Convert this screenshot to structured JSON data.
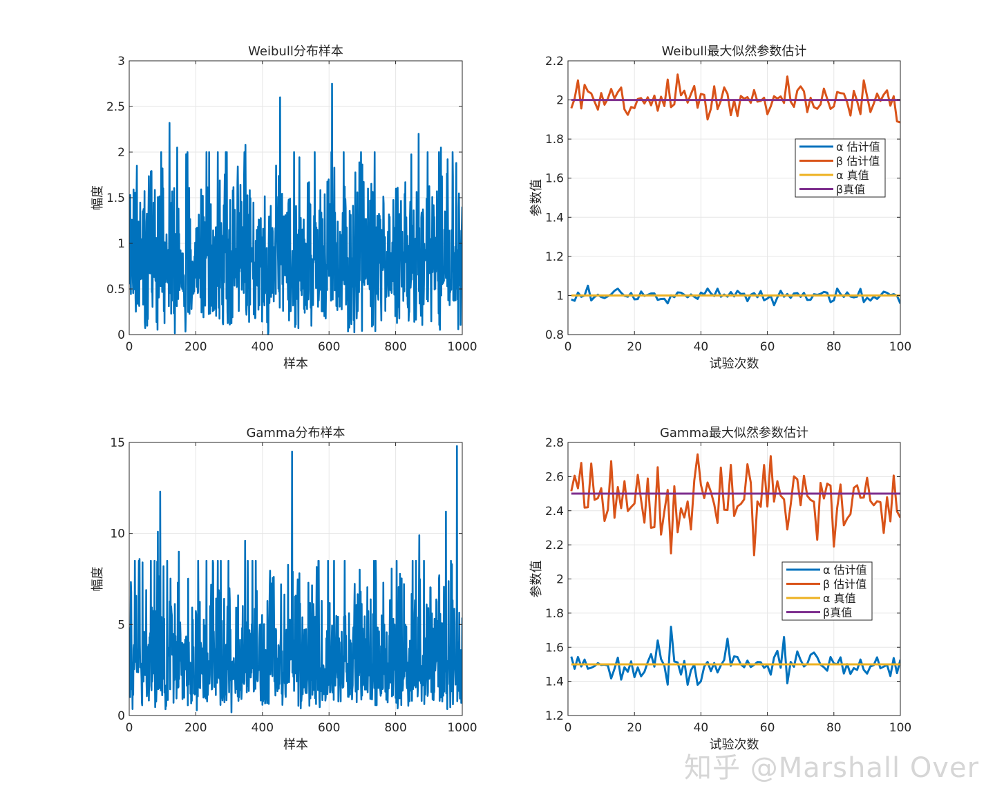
{
  "watermark": "知乎 @Marshall Over",
  "colors": {
    "blue": "#0072BD",
    "orange": "#D95319",
    "yellow": "#EDB120",
    "purple": "#7E2F8E",
    "grid": "#e6e6e6",
    "axis": "#262626"
  },
  "chart_data": [
    {
      "id": "weibull-samples",
      "type": "line",
      "title": "Weibull分布样本",
      "xlabel": "样本",
      "ylabel": "幅度",
      "xlim": [
        0,
        1000
      ],
      "ylim": [
        0,
        3
      ],
      "xticks": [
        0,
        200,
        400,
        600,
        800,
        1000
      ],
      "yticks": [
        0,
        0.5,
        1,
        1.5,
        2,
        2.5,
        3
      ],
      "ytick_labels": [
        "0",
        "0.5",
        "1",
        "1.5",
        "2",
        "2.5",
        "3"
      ],
      "series": [
        {
          "name": "Weibull samples",
          "color": "#0072BD",
          "n": 1000,
          "distribution": "weibull",
          "peaks": [
            [
              120,
              2.32
            ],
            [
              452,
              2.6
            ],
            [
              608,
              2.75
            ],
            [
              868,
              2.2
            ],
            [
              143,
              2.05
            ],
            [
              348,
              2.08
            ],
            [
              2,
              1.53
            ],
            [
              22,
              1.85
            ],
            [
              935,
              2.05
            ]
          ]
        }
      ]
    },
    {
      "id": "weibull-mle",
      "type": "line",
      "title": "Weibull最大似然参数估计",
      "xlabel": "试验次数",
      "ylabel": "参数值",
      "xlim": [
        0,
        100
      ],
      "ylim": [
        0.8,
        2.2
      ],
      "xticks": [
        0,
        20,
        40,
        60,
        80,
        100
      ],
      "yticks": [
        0.8,
        1,
        1.2,
        1.4,
        1.6,
        1.8,
        2,
        2.2
      ],
      "ytick_labels": [
        "0.8",
        "1",
        "1.2",
        "1.4",
        "1.6",
        "1.8",
        "2",
        "2.2"
      ],
      "legend": {
        "position": "right-middle",
        "entries": [
          "α 估计值",
          "β 估计值",
          "α 真值",
          "β真值"
        ]
      },
      "series": [
        {
          "name": "α 估计值",
          "color": "#0072BD",
          "x_start": 1,
          "x_end": 100,
          "mean": 1.0,
          "spread": 0.018,
          "spikes": [
            [
              6,
              1.05
            ],
            [
              45,
              1.035
            ],
            [
              3,
              1.015
            ]
          ]
        },
        {
          "name": "β 估计值",
          "color": "#D95319",
          "x_start": 1,
          "x_end": 100,
          "mean": 2.0,
          "spread": 0.045,
          "spikes": [
            [
              3,
              2.1
            ],
            [
              33,
              2.13
            ],
            [
              66,
              2.12
            ],
            [
              89,
              2.1
            ],
            [
              100,
              1.885
            ],
            [
              42,
              1.9
            ],
            [
              44,
              2.07
            ]
          ]
        },
        {
          "name": "α 真值",
          "color": "#EDB120",
          "x": [
            1,
            100
          ],
          "values": [
            1,
            1
          ]
        },
        {
          "name": "β真值",
          "color": "#7E2F8E",
          "x": [
            1,
            100
          ],
          "values": [
            2,
            2
          ]
        }
      ]
    },
    {
      "id": "gamma-samples",
      "type": "line",
      "title": "Gamma分布样本",
      "xlabel": "样本",
      "ylabel": "幅度",
      "xlim": [
        0,
        1000
      ],
      "ylim": [
        0,
        15
      ],
      "xticks": [
        0,
        200,
        400,
        600,
        800,
        1000
      ],
      "yticks": [
        0,
        5,
        10,
        15
      ],
      "ytick_labels": [
        "0",
        "5",
        "10",
        "15"
      ],
      "series": [
        {
          "name": "Gamma samples",
          "color": "#0072BD",
          "n": 1000,
          "distribution": "gamma",
          "peaks": [
            [
              85,
              10.1
            ],
            [
              92,
              12.3
            ],
            [
              488,
              14.5
            ],
            [
              983,
              14.8
            ],
            [
              347,
              9.6
            ],
            [
              148,
              9.0
            ],
            [
              30,
              8.6
            ],
            [
              5,
              6.8
            ],
            [
              950,
              11.2
            ],
            [
              870,
              9.9
            ],
            [
              762,
              7.3
            ],
            [
              490,
              7.9
            ],
            [
              102,
              8.2
            ]
          ]
        }
      ]
    },
    {
      "id": "gamma-mle",
      "type": "line",
      "title": "Gamma最大似然参数估计",
      "xlabel": "试验次数",
      "ylabel": "参数值",
      "xlim": [
        0,
        100
      ],
      "ylim": [
        1.2,
        2.8
      ],
      "xticks": [
        0,
        20,
        40,
        60,
        80,
        100
      ],
      "yticks": [
        1.2,
        1.4,
        1.6,
        1.8,
        2,
        2.2,
        2.4,
        2.6,
        2.8
      ],
      "ytick_labels": [
        "1.2",
        "1.4",
        "1.6",
        "1.8",
        "2",
        "2.2",
        "2.4",
        "2.6",
        "2.8"
      ],
      "legend": {
        "position": "right-middle",
        "entries": [
          "α 估计值",
          "β 估计值",
          "α 真值",
          "β真值"
        ]
      },
      "series": [
        {
          "name": "α 估计值",
          "color": "#0072BD",
          "x_start": 1,
          "x_end": 100,
          "mean": 1.5,
          "spread": 0.04,
          "spikes": [
            [
              31,
              1.72
            ],
            [
              65,
              1.66
            ],
            [
              27,
              1.64
            ],
            [
              36,
              1.38
            ],
            [
              39,
              1.38
            ],
            [
              48,
              1.65
            ],
            [
              16,
              1.41
            ]
          ]
        },
        {
          "name": "β 估计值",
          "color": "#D95319",
          "x_start": 1,
          "x_end": 100,
          "mean": 2.5,
          "spread": 0.12,
          "spikes": [
            [
              4,
              2.68
            ],
            [
              13,
              2.69
            ],
            [
              39,
              2.73
            ],
            [
              61,
              2.72
            ],
            [
              31,
              2.15
            ],
            [
              80,
              2.19
            ],
            [
              28,
              2.26
            ],
            [
              37,
              2.29
            ],
            [
              95,
              2.27
            ],
            [
              100,
              2.36
            ]
          ]
        },
        {
          "name": "α 真值",
          "color": "#EDB120",
          "x": [
            1,
            100
          ],
          "values": [
            1.5,
            1.5
          ]
        },
        {
          "name": "β真值",
          "color": "#7E2F8E",
          "x": [
            1,
            100
          ],
          "values": [
            2.5,
            2.5
          ]
        }
      ]
    }
  ]
}
